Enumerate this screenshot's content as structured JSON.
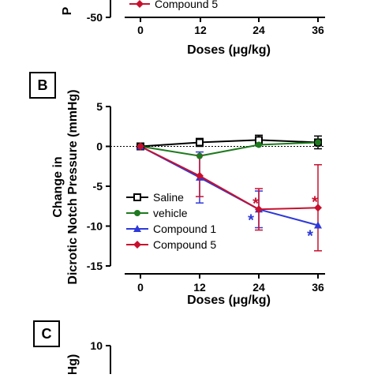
{
  "panels": {
    "a_partial": {
      "ytick_label": "-50",
      "ylabel_fragment": "P",
      "legend_entry": "Compound 5",
      "xtick_labels": [
        "0",
        "12",
        "24",
        "36"
      ],
      "xlabel": "Doses (μg/kg)"
    },
    "b": {
      "panel_label": "B",
      "ylabel_line1": "Change in",
      "ylabel_line2": "Dicrotic Notch Pressure (mmHg)",
      "xlabel": "Doses (μg/kg)",
      "significance_marker": "*"
    },
    "c_partial": {
      "panel_label": "C",
      "ytick_label": "10",
      "ylabel_fragment": "Hg)"
    }
  },
  "colors": {
    "saline": "#000000",
    "vehicle": "#1e7a1e",
    "compound1": "#2e39d8",
    "compound5": "#c8102e"
  },
  "chart_data": {
    "type": "line",
    "title": "",
    "xlabel": "Doses (μg/kg)",
    "ylabel": "Change in Dicrotic Notch Pressure (mmHg)",
    "x": [
      0,
      12,
      24,
      36
    ],
    "xlim": [
      0,
      36
    ],
    "ylim": [
      -15,
      5
    ],
    "yticks": [
      5,
      0,
      -5,
      -10,
      -15
    ],
    "legend_position": "bottom-left",
    "zero_reference_line": "dotted",
    "series": [
      {
        "name": "Saline",
        "marker": "open-square",
        "color": "#000000",
        "values": [
          0,
          0.5,
          0.8,
          0.5
        ],
        "errors": [
          0,
          0.5,
          0.6,
          0.8
        ]
      },
      {
        "name": "vehicle",
        "marker": "filled-circle",
        "color": "#1e7a1e",
        "values": [
          0,
          -1.2,
          0.2,
          0.5
        ],
        "errors": [
          0,
          0,
          0,
          0
        ]
      },
      {
        "name": "Compound 1",
        "marker": "filled-triangle",
        "color": "#2e39d8",
        "values": [
          0,
          -3.9,
          -7.9,
          -9.9
        ],
        "errors": [
          0,
          3.2,
          2.3,
          0
        ],
        "significant": [
          false,
          false,
          true,
          true
        ]
      },
      {
        "name": "Compound 5",
        "marker": "filled-diamond",
        "color": "#c8102e",
        "values": [
          0,
          -3.7,
          -7.9,
          -7.7
        ],
        "errors": [
          0,
          2.6,
          2.6,
          5.4
        ],
        "significant": [
          false,
          false,
          true,
          true
        ]
      }
    ]
  }
}
